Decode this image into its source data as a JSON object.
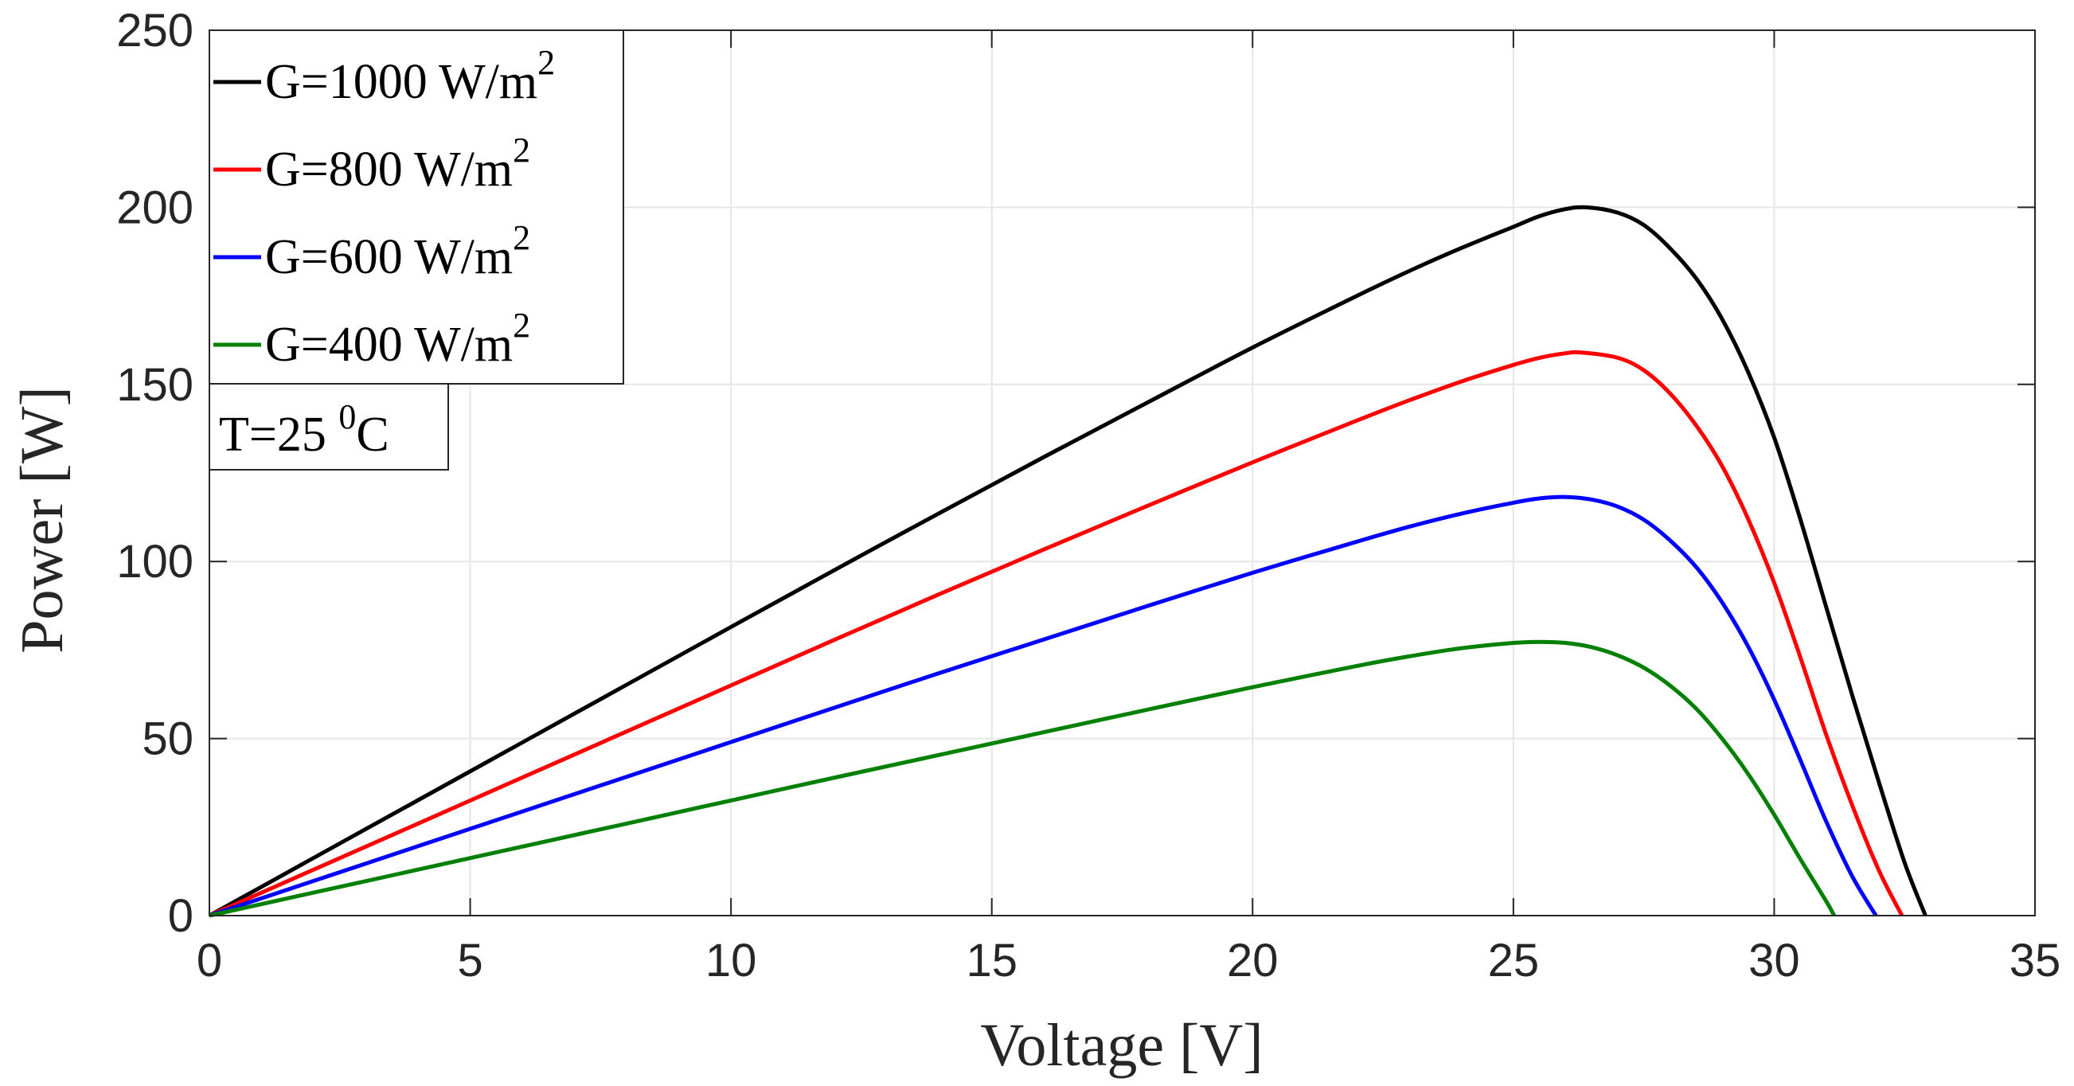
{
  "chart_data": {
    "type": "line",
    "title": "",
    "xlabel": "Voltage [V]",
    "ylabel": "Power [W]",
    "xlim": [
      0,
      35
    ],
    "ylim": [
      0,
      250
    ],
    "xticks": [
      0,
      5,
      10,
      15,
      20,
      25,
      30,
      35
    ],
    "yticks": [
      0,
      50,
      100,
      150,
      200,
      250
    ],
    "xtick_labels": [
      "0",
      "5",
      "10",
      "15",
      "20",
      "25",
      "30",
      "35"
    ],
    "ytick_labels": [
      "0",
      "50",
      "100",
      "150",
      "200",
      "250"
    ],
    "grid": true,
    "legend_position": "top-left",
    "annotation": {
      "text": "T=25 ",
      "sup": "0",
      "suffix": "C"
    },
    "series": [
      {
        "name": "G=1000 W/m",
        "sup": "2",
        "color": "#000000",
        "x": [
          0,
          2,
          4,
          6,
          8,
          10,
          12,
          14,
          16,
          18,
          20,
          22,
          23,
          24,
          25,
          25.5,
          26,
          26.4,
          27,
          27.5,
          28,
          28.5,
          29,
          29.5,
          30,
          30.5,
          31,
          31.5,
          32,
          32.5,
          32.9
        ],
        "y": [
          0,
          16.3,
          32.6,
          48.9,
          65.2,
          81.5,
          97.7,
          113.7,
          129.5,
          145.0,
          160.4,
          175.0,
          182.0,
          188.5,
          194.5,
          197.5,
          199.5,
          200.0,
          198.5,
          195.0,
          188.5,
          180.0,
          168.5,
          153.5,
          135.0,
          112.0,
          87.0,
          62.0,
          38.0,
          15.0,
          0
        ]
      },
      {
        "name": "G=800 W/m",
        "sup": "2",
        "color": "#ff0000",
        "x": [
          0,
          2,
          4,
          6,
          8,
          10,
          12,
          14,
          16,
          18,
          20,
          22,
          23,
          24,
          25,
          25.5,
          26,
          26.3,
          27,
          27.5,
          28,
          28.5,
          29,
          29.5,
          30,
          30.5,
          31,
          31.5,
          32,
          32.45
        ],
        "y": [
          0,
          13.0,
          26.0,
          39.0,
          52.0,
          65.0,
          78.0,
          90.8,
          103.4,
          115.8,
          128.0,
          139.8,
          145.5,
          150.8,
          155.5,
          157.5,
          158.8,
          159.0,
          157.5,
          154.0,
          147.5,
          138.5,
          127.0,
          112.0,
          94.0,
          73.0,
          51.0,
          31.0,
          13.0,
          0
        ]
      },
      {
        "name": "G=600 W/m",
        "sup": "2",
        "color": "#0000ff",
        "x": [
          0,
          2,
          4,
          6,
          8,
          10,
          12,
          14,
          16,
          18,
          20,
          22,
          23,
          24,
          25,
          25.5,
          26,
          26.5,
          27,
          27.5,
          28,
          28.5,
          29,
          29.5,
          30,
          30.5,
          31,
          31.5,
          31.95
        ],
        "y": [
          0,
          9.8,
          19.6,
          29.4,
          39.2,
          49.0,
          58.8,
          68.5,
          78.0,
          87.5,
          96.8,
          105.6,
          109.8,
          113.5,
          116.6,
          117.8,
          118.2,
          117.5,
          115.5,
          111.8,
          106.0,
          98.5,
          88.5,
          76.0,
          61.0,
          44.0,
          26.5,
          11.0,
          0
        ]
      },
      {
        "name": "G=400 W/m",
        "sup": "2",
        "color": "#008000",
        "x": [
          0,
          2,
          4,
          6,
          8,
          10,
          12,
          14,
          16,
          18,
          20,
          22,
          23,
          24,
          25,
          25.5,
          26,
          26.5,
          27,
          27.5,
          28,
          28.5,
          29,
          29.5,
          30,
          30.5,
          31,
          31.15
        ],
        "y": [
          0,
          6.5,
          13.0,
          19.5,
          26.0,
          32.5,
          39.0,
          45.4,
          51.8,
          58.2,
          64.5,
          70.5,
          73.2,
          75.5,
          77.0,
          77.3,
          77.0,
          75.8,
          73.5,
          70.0,
          65.0,
          58.5,
          50.0,
          40.0,
          28.5,
          16.0,
          4.0,
          0
        ]
      }
    ]
  }
}
